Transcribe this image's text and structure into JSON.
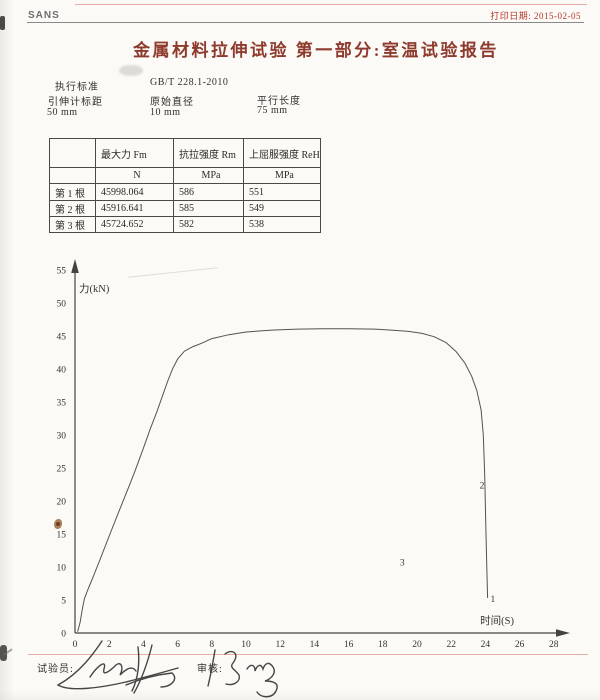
{
  "header": {
    "logo": "SANS",
    "print_date": "打印日期: 2015-02-05",
    "title": "金属材料拉伸试验 第一部分:室温试验报告"
  },
  "standards": {
    "exec_label": "执行标准",
    "exec_value": "GB/T 228.1-2010",
    "fields": [
      {
        "label": "引伸计标距",
        "value": "50 mm"
      },
      {
        "label": "原始直径",
        "value": "10 mm"
      },
      {
        "label": "平行长度",
        "value": "75 mm"
      }
    ]
  },
  "results_table": {
    "col_headers": [
      "",
      "最大力 Fm",
      "抗拉强度 Rm",
      "上屈服强度 ReH"
    ],
    "unit_row": [
      "",
      "N",
      "MPa",
      "MPa"
    ],
    "rows": [
      {
        "label": "第 1 根",
        "values": [
          "45998.064",
          "586",
          "551"
        ]
      },
      {
        "label": "第 2 根",
        "values": [
          "45916.641",
          "585",
          "549"
        ]
      },
      {
        "label": "第 3 根",
        "values": [
          "45724.652",
          "582",
          "538"
        ]
      }
    ]
  },
  "chart_data": {
    "type": "line",
    "title": "",
    "xlabel": "时间(S)",
    "ylabel": "力(kN)",
    "xlim": [
      0,
      28.8
    ],
    "ylim": [
      0,
      56
    ],
    "grid": false,
    "x_ticks": [
      0,
      2,
      4,
      6,
      8,
      10,
      12,
      14,
      16,
      18,
      20,
      22,
      24,
      26,
      28
    ],
    "y_ticks": [
      0,
      5,
      10,
      15,
      20,
      25,
      30,
      35,
      40,
      45,
      50,
      55
    ],
    "series": [
      {
        "name": "力-时间曲线",
        "points": [
          [
            0.15,
            0.2
          ],
          [
            0.3,
            1.6
          ],
          [
            0.42,
            3.5
          ],
          [
            0.55,
            5.2
          ],
          [
            0.8,
            6.9
          ],
          [
            1.0,
            8.1
          ],
          [
            1.5,
            11.4
          ],
          [
            2.0,
            14.7
          ],
          [
            2.5,
            18.0
          ],
          [
            3.0,
            21.2
          ],
          [
            3.5,
            24.5
          ],
          [
            4.0,
            28.0
          ],
          [
            4.4,
            30.9
          ],
          [
            4.8,
            33.6
          ],
          [
            5.1,
            35.8
          ],
          [
            5.4,
            38.0
          ],
          [
            5.7,
            40.0
          ],
          [
            6.0,
            41.5
          ],
          [
            6.4,
            42.7
          ],
          [
            6.9,
            43.4
          ],
          [
            7.4,
            43.9
          ],
          [
            8.0,
            44.6
          ],
          [
            9.0,
            45.2
          ],
          [
            10.0,
            45.6
          ],
          [
            11.5,
            45.9
          ],
          [
            13.0,
            46.05
          ],
          [
            14.5,
            46.1
          ],
          [
            16.0,
            46.1
          ],
          [
            17.5,
            46.05
          ],
          [
            18.5,
            45.9
          ],
          [
            19.5,
            45.7
          ],
          [
            20.3,
            45.4
          ],
          [
            21.0,
            44.9
          ],
          [
            21.7,
            44.0
          ],
          [
            22.3,
            42.6
          ],
          [
            22.8,
            40.9
          ],
          [
            23.2,
            38.9
          ],
          [
            23.5,
            36.7
          ],
          [
            23.75,
            33.8
          ],
          [
            23.88,
            30.0
          ],
          [
            23.96,
            24.0
          ],
          [
            24.02,
            17.0
          ],
          [
            24.08,
            10.0
          ],
          [
            24.13,
            5.3
          ]
        ]
      }
    ],
    "point_labels": [
      {
        "text": "1",
        "x": 24.3,
        "y": 4.7
      },
      {
        "text": "2",
        "x": 23.66,
        "y": 21.9
      },
      {
        "text": "3",
        "x": 19.0,
        "y": 10.2
      }
    ]
  },
  "footer": {
    "tester_label": "试验员:",
    "reviewer_label": "审核:"
  }
}
